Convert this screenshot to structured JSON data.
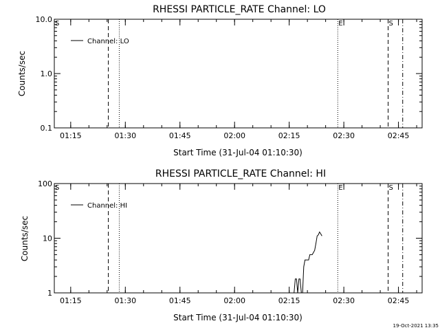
{
  "chart_data": [
    {
      "type": "line",
      "title": "RHESSI PARTICLE_RATE Channel: LO",
      "xlabel": "Start Time (31-Jul-04 01:10:30)",
      "ylabel": "Counts/sec",
      "x_ticks": [
        "01:15",
        "01:30",
        "01:45",
        "02:00",
        "02:15",
        "02:30",
        "02:45"
      ],
      "y_ticks": [
        "0.1",
        "1.0",
        "10.0"
      ],
      "ylim": [
        0.1,
        10
      ],
      "yscale": "log",
      "xlim": [
        "01:10:30",
        "02:51:30"
      ],
      "series": [
        {
          "name": "Channel: LO",
          "x": [],
          "y": []
        }
      ],
      "markers": [
        {
          "time": "01:10:30",
          "style": "none",
          "label": "S"
        },
        {
          "time": "01:25:20",
          "style": "dashed",
          "label": ""
        },
        {
          "time": "01:28:20",
          "style": "dotted",
          "label": ""
        },
        {
          "time": "02:28:20",
          "style": "dotted",
          "label": "E"
        },
        {
          "time": "02:42:10",
          "style": "dashed",
          "label": "S"
        },
        {
          "time": "02:46:10",
          "style": "dash-dot",
          "label": ""
        }
      ],
      "legend_position": "top-left"
    },
    {
      "type": "line",
      "title": "RHESSI PARTICLE_RATE Channel: HI",
      "xlabel": "Start Time (31-Jul-04 01:10:30)",
      "ylabel": "Counts/sec",
      "x_ticks": [
        "01:15",
        "01:30",
        "01:45",
        "02:00",
        "02:15",
        "02:30",
        "02:45"
      ],
      "y_ticks": [
        "1",
        "10",
        "100"
      ],
      "ylim": [
        1,
        100
      ],
      "yscale": "log",
      "xlim": [
        "01:10:30",
        "02:51:30"
      ],
      "series": [
        {
          "name": "Channel: HI",
          "x": [
            "02:16:20",
            "02:16:40",
            "02:17:00",
            "02:17:20",
            "02:17:40",
            "02:18:00",
            "02:18:20",
            "02:18:40",
            "02:19:00",
            "02:19:20",
            "02:20:00",
            "02:20:20",
            "02:20:40",
            "02:21:00",
            "02:21:20",
            "02:21:40",
            "02:22:00",
            "02:22:20",
            "02:22:40",
            "02:23:00",
            "02:23:20",
            "02:23:40",
            "02:24:00"
          ],
          "y": [
            1,
            1.8,
            1.8,
            1,
            1.8,
            1.8,
            1,
            1,
            3,
            4,
            4,
            4,
            5,
            5,
            5,
            5.5,
            6,
            8,
            11,
            11.5,
            13,
            12,
            11
          ]
        }
      ],
      "markers": [
        {
          "time": "01:10:30",
          "style": "none",
          "label": "S"
        },
        {
          "time": "01:25:20",
          "style": "dashed",
          "label": ""
        },
        {
          "time": "01:28:20",
          "style": "dotted",
          "label": ""
        },
        {
          "time": "02:28:20",
          "style": "dotted",
          "label": "E"
        },
        {
          "time": "02:42:10",
          "style": "dashed",
          "label": "S"
        },
        {
          "time": "02:46:10",
          "style": "dash-dot",
          "label": ""
        }
      ],
      "legend_position": "top-left"
    }
  ],
  "footer": {
    "timestamp": "19-Oct-2021 13:35"
  }
}
